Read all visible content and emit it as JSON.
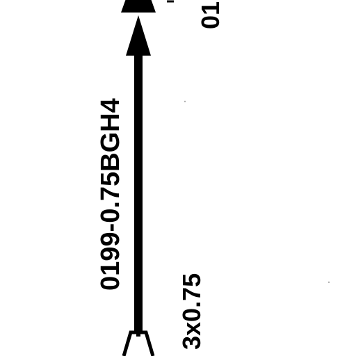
{
  "diagram": {
    "cable_label": "0199-0.75BGH4",
    "size_label": "3x0.75",
    "top_label": "01",
    "line_color": "#000000",
    "background_color": "#ffffff"
  }
}
